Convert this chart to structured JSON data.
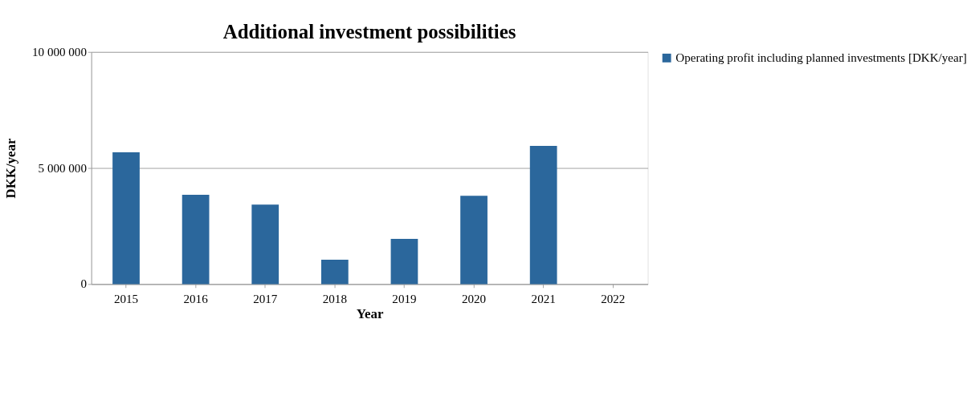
{
  "chart_data": {
    "type": "bar",
    "title": "Additional investment possibilities",
    "xlabel": "Year",
    "ylabel": "DKK/year",
    "categories": [
      "2015",
      "2016",
      "2017",
      "2018",
      "2019",
      "2020",
      "2021",
      "2022"
    ],
    "series": [
      {
        "name": "Operating profit including planned investments [DKK/year]",
        "color": "#2b679c",
        "values": [
          5680000,
          3850000,
          3420000,
          1050000,
          1950000,
          3800000,
          5950000,
          null
        ]
      }
    ],
    "ylim": [
      0,
      10000000
    ],
    "yticks": [
      {
        "value": 0,
        "label": "0"
      },
      {
        "value": 5000000,
        "label": "5 000 000"
      },
      {
        "value": 10000000,
        "label": "10 000 000"
      }
    ],
    "grid": "y",
    "legend": "right"
  }
}
